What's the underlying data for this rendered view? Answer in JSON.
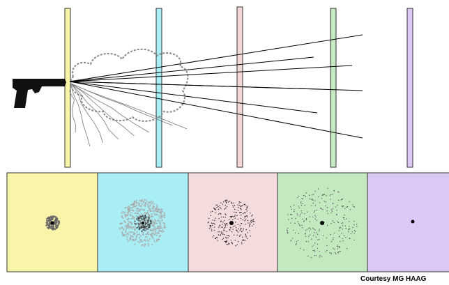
{
  "credit": "Courtesy  MG HAAG"
}
